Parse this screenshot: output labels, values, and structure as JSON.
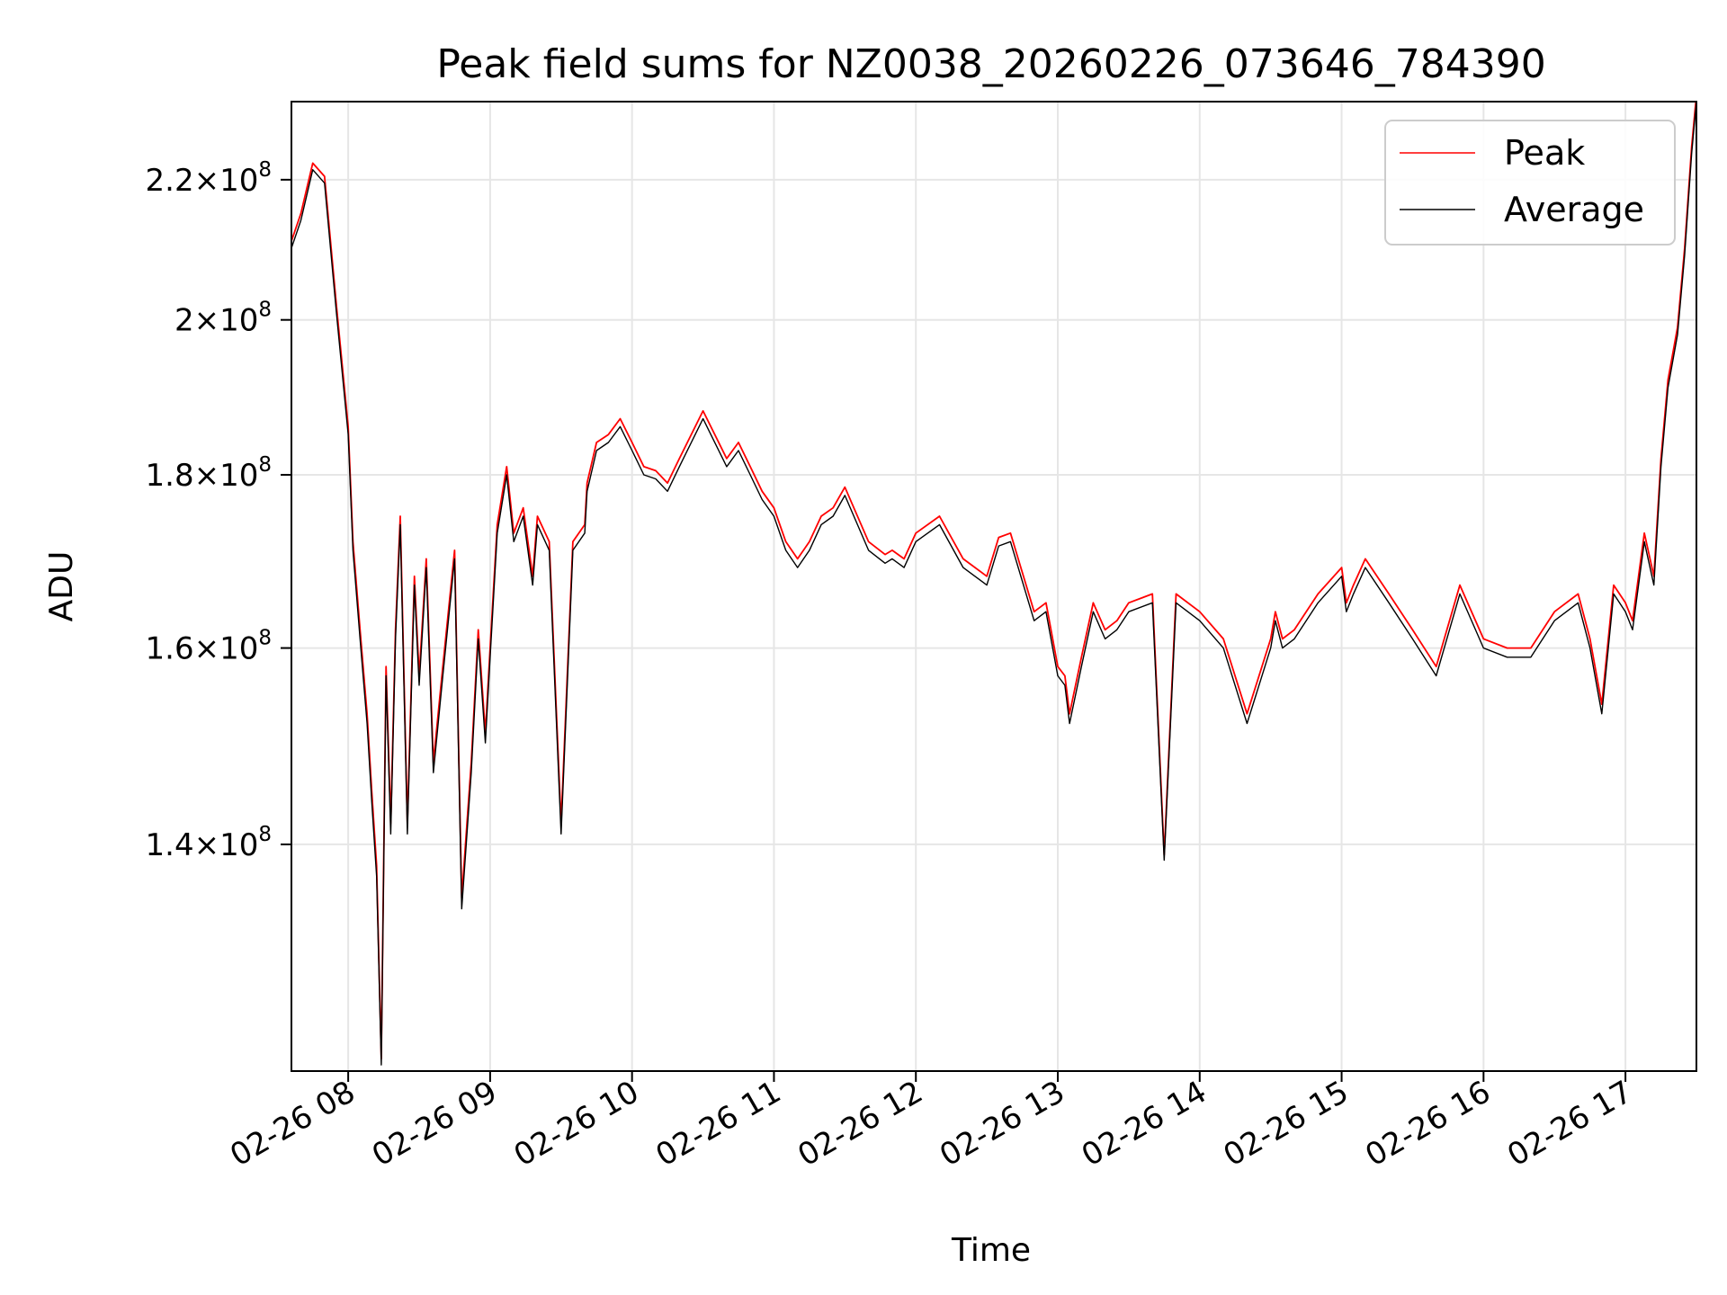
{
  "chart_data": {
    "type": "line",
    "title": "Peak field sums for NZ0038_20260226_073646_784390",
    "xlabel": "Time",
    "ylabel": "ADU",
    "yscale": "log",
    "xlim": [
      "02-26 07:36",
      "02-26 17:30"
    ],
    "ylim": [
      120000000,
      232000000
    ],
    "grid": true,
    "legend_position": "top-right",
    "x_ticks": [
      "02-26 08",
      "02-26 09",
      "02-26 10",
      "02-26 11",
      "02-26 12",
      "02-26 13",
      "02-26 14",
      "02-26 15",
      "02-26 16",
      "02-26 17"
    ],
    "y_ticks": [
      {
        "value": 140000000,
        "mantissa": "1.4",
        "base": "10",
        "exponent": "8"
      },
      {
        "value": 160000000,
        "mantissa": "1.6",
        "base": "10",
        "exponent": "8"
      },
      {
        "value": 180000000,
        "mantissa": "1.8",
        "base": "10",
        "exponent": "8"
      },
      {
        "value": 200000000,
        "mantissa": "2",
        "base": "10",
        "exponent": "8"
      },
      {
        "value": 220000000,
        "mantissa": "2.2",
        "base": "10",
        "exponent": "8"
      }
    ],
    "x": [
      "07:36",
      "07:40",
      "07:45",
      "07:50",
      "07:55",
      "08:00",
      "08:02",
      "08:05",
      "08:08",
      "08:10",
      "08:12",
      "08:14",
      "08:16",
      "08:18",
      "08:20",
      "08:22",
      "08:25",
      "08:28",
      "08:30",
      "08:33",
      "08:36",
      "08:40",
      "08:45",
      "08:48",
      "08:52",
      "08:55",
      "08:58",
      "09:00",
      "09:03",
      "09:07",
      "09:10",
      "09:14",
      "09:18",
      "09:20",
      "09:25",
      "09:30",
      "09:35",
      "09:40",
      "09:41",
      "09:45",
      "09:50",
      "09:55",
      "10:00",
      "10:05",
      "10:10",
      "10:15",
      "10:20",
      "10:30",
      "10:40",
      "10:45",
      "10:50",
      "10:55",
      "11:00",
      "11:05",
      "11:10",
      "11:15",
      "11:20",
      "11:25",
      "11:30",
      "11:40",
      "11:47",
      "11:50",
      "11:55",
      "12:00",
      "12:10",
      "12:20",
      "12:30",
      "12:35",
      "12:40",
      "12:50",
      "12:55",
      "13:00",
      "13:03",
      "13:05",
      "13:10",
      "13:15",
      "13:20",
      "13:25",
      "13:30",
      "13:40",
      "13:45",
      "13:50",
      "14:00",
      "14:10",
      "14:20",
      "14:30",
      "14:32",
      "14:35",
      "14:40",
      "14:50",
      "15:00",
      "15:02",
      "15:05",
      "15:10",
      "15:20",
      "15:30",
      "15:40",
      "15:50",
      "16:00",
      "16:10",
      "16:20",
      "16:30",
      "16:40",
      "16:45",
      "16:50",
      "16:55",
      "17:00",
      "17:03",
      "17:08",
      "17:12",
      "17:15",
      "17:18",
      "17:22",
      "17:25",
      "17:28",
      "17:30"
    ],
    "series": [
      {
        "name": "Peak",
        "color": "#ff0000",
        "values": [
          211000000,
          215000000,
          222500000,
          220500000,
          202000000,
          186000000,
          172000000,
          162000000,
          153000000,
          145000000,
          138000000,
          121000000,
          158000000,
          142000000,
          162000000,
          175000000,
          142000000,
          168000000,
          157000000,
          170000000,
          148000000,
          158000000,
          171000000,
          135000000,
          148000000,
          162000000,
          151000000,
          160000000,
          174000000,
          181000000,
          173000000,
          176000000,
          168000000,
          175000000,
          172000000,
          142000000,
          172000000,
          174000000,
          179000000,
          184000000,
          185000000,
          187000000,
          184000000,
          181000000,
          180500000,
          179000000,
          182000000,
          188000000,
          182000000,
          184000000,
          181000000,
          178000000,
          176000000,
          172000000,
          170000000,
          172000000,
          175000000,
          176000000,
          178500000,
          172000000,
          170500000,
          171000000,
          170000000,
          173000000,
          175000000,
          170000000,
          168000000,
          172500000,
          173000000,
          164000000,
          165000000,
          158000000,
          157000000,
          153000000,
          159000000,
          165000000,
          162000000,
          163000000,
          165000000,
          166000000,
          139000000,
          166000000,
          164000000,
          161000000,
          153000000,
          161000000,
          164000000,
          161000000,
          162000000,
          166000000,
          169000000,
          165000000,
          167000000,
          170000000,
          166000000,
          162000000,
          158000000,
          167000000,
          161000000,
          160000000,
          160000000,
          164000000,
          166000000,
          161000000,
          154000000,
          167000000,
          165000000,
          163000000,
          173000000,
          168000000,
          182000000,
          192000000,
          199000000,
          210000000,
          225000000,
          233000000
        ]
      },
      {
        "name": "Average",
        "color": "#000000",
        "values": [
          210000000,
          214000000,
          221500000,
          219500000,
          201000000,
          185000000,
          171000000,
          161000000,
          152000000,
          144000000,
          137000000,
          120500000,
          157000000,
          141000000,
          161000000,
          174000000,
          141000000,
          167000000,
          156000000,
          169000000,
          147000000,
          157000000,
          170000000,
          134000000,
          147000000,
          161000000,
          150000000,
          159000000,
          173000000,
          180000000,
          172000000,
          175000000,
          167000000,
          174000000,
          171000000,
          141000000,
          171000000,
          173000000,
          178000000,
          183000000,
          184000000,
          186000000,
          183000000,
          180000000,
          179500000,
          178000000,
          181000000,
          187000000,
          181000000,
          183000000,
          180000000,
          177000000,
          175000000,
          171000000,
          169000000,
          171000000,
          174000000,
          175000000,
          177500000,
          171000000,
          169500000,
          170000000,
          169000000,
          172000000,
          174000000,
          169000000,
          167000000,
          171500000,
          172000000,
          163000000,
          164000000,
          157000000,
          156000000,
          152000000,
          158000000,
          164000000,
          161000000,
          162000000,
          164000000,
          165000000,
          138500000,
          165000000,
          163000000,
          160000000,
          152000000,
          160000000,
          163000000,
          160000000,
          161000000,
          165000000,
          168000000,
          164000000,
          166000000,
          169000000,
          165000000,
          161000000,
          157000000,
          166000000,
          160000000,
          159000000,
          159000000,
          163000000,
          165000000,
          160000000,
          153000000,
          166000000,
          164000000,
          162000000,
          172000000,
          167000000,
          181000000,
          191000000,
          198000000,
          209000000,
          224000000,
          232000000
        ]
      }
    ]
  }
}
